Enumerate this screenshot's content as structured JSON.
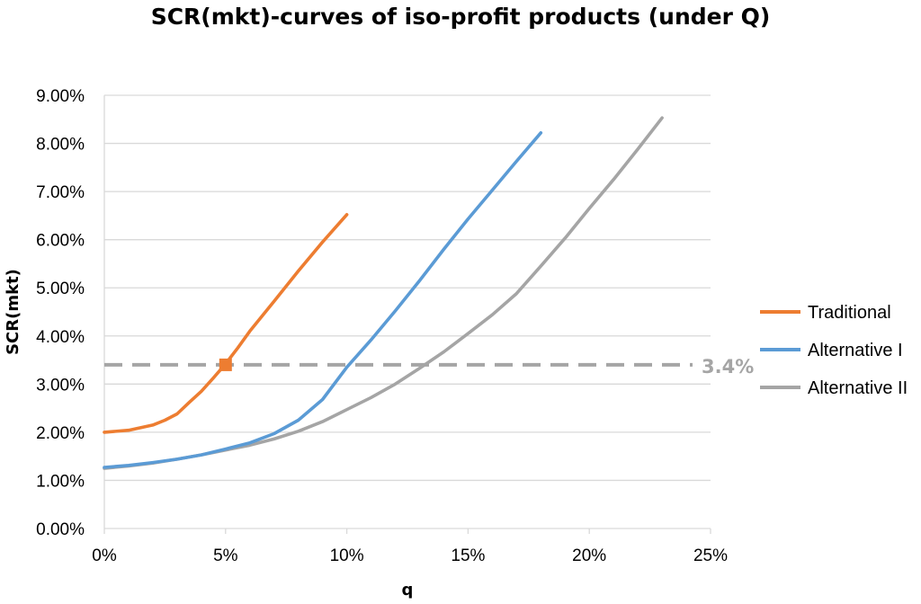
{
  "chart_data": {
    "type": "line",
    "title": "SCR(mkt)-curves of iso-profit products (under Q)",
    "xlabel": "q",
    "ylabel": "SCR(mkt)",
    "xlim": [
      0,
      0.25
    ],
    "ylim": [
      0,
      0.09
    ],
    "x_ticks": [
      0,
      0.05,
      0.1,
      0.15,
      0.2,
      0.25
    ],
    "x_tick_labels": [
      "0%",
      "5%",
      "10%",
      "15%",
      "20%",
      "25%"
    ],
    "y_ticks": [
      0,
      0.01,
      0.02,
      0.03,
      0.04,
      0.05,
      0.06,
      0.07,
      0.08,
      0.09
    ],
    "y_tick_labels": [
      "0.00%",
      "1.00%",
      "2.00%",
      "3.00%",
      "4.00%",
      "5.00%",
      "6.00%",
      "7.00%",
      "8.00%",
      "9.00%"
    ],
    "grid": "horizontal",
    "legend": "right",
    "series": [
      {
        "name": "Traditional",
        "color": "#ED7D31",
        "x": [
          0,
          0.01,
          0.02,
          0.025,
          0.03,
          0.035,
          0.04,
          0.045,
          0.05,
          0.055,
          0.06,
          0.07,
          0.08,
          0.09,
          0.1
        ],
        "y": [
          0.02,
          0.0204,
          0.0215,
          0.0225,
          0.0238,
          0.0262,
          0.0285,
          0.0313,
          0.0342,
          0.0375,
          0.041,
          0.0472,
          0.0535,
          0.0595,
          0.0652
        ]
      },
      {
        "name": "Alternative I",
        "color": "#5B9BD5",
        "x": [
          0,
          0.01,
          0.02,
          0.03,
          0.04,
          0.05,
          0.06,
          0.07,
          0.08,
          0.09,
          0.1,
          0.11,
          0.12,
          0.13,
          0.14,
          0.15,
          0.16,
          0.17,
          0.18
        ],
        "y": [
          0.0127,
          0.0131,
          0.0137,
          0.0144,
          0.0153,
          0.0165,
          0.0178,
          0.0197,
          0.0225,
          0.0268,
          0.0335,
          0.0392,
          0.0452,
          0.0515,
          0.058,
          0.0643,
          0.0703,
          0.0763,
          0.0822
        ]
      },
      {
        "name": "Alternative II",
        "color": "#A5A5A5",
        "x": [
          0,
          0.01,
          0.02,
          0.03,
          0.04,
          0.05,
          0.06,
          0.07,
          0.08,
          0.09,
          0.1,
          0.11,
          0.12,
          0.13,
          0.14,
          0.15,
          0.16,
          0.17,
          0.18,
          0.19,
          0.2,
          0.21,
          0.22,
          0.23
        ],
        "y": [
          0.0125,
          0.013,
          0.0136,
          0.0144,
          0.0153,
          0.0163,
          0.0173,
          0.0186,
          0.0202,
          0.0222,
          0.0247,
          0.0272,
          0.03,
          0.0333,
          0.0367,
          0.0405,
          0.0444,
          0.0488,
          0.0545,
          0.0603,
          0.0665,
          0.0725,
          0.0788,
          0.0853
        ]
      }
    ],
    "reference_line": {
      "y": 0.034,
      "label": "3.4%",
      "color": "#A5A5A5",
      "style": "dashed"
    },
    "marker": {
      "series": "Traditional",
      "x": 0.05,
      "y": 0.034,
      "shape": "square",
      "color": "#ED7D31"
    }
  }
}
